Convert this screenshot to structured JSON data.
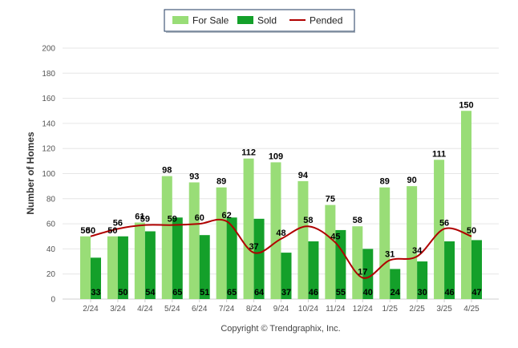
{
  "chart_data": {
    "type": "bar",
    "categories": [
      "2/24",
      "3/24",
      "4/24",
      "5/24",
      "6/24",
      "7/24",
      "8/24",
      "9/24",
      "10/24",
      "11/24",
      "12/24",
      "1/25",
      "2/25",
      "3/25",
      "4/25"
    ],
    "series": [
      {
        "name": "For Sale",
        "kind": "bar",
        "color": "#99dd77",
        "values": [
          50,
          50,
          61,
          98,
          93,
          89,
          112,
          109,
          94,
          75,
          58,
          89,
          90,
          111,
          150
        ]
      },
      {
        "name": "Sold",
        "kind": "bar",
        "color": "#14a02a",
        "values": [
          33,
          50,
          54,
          65,
          51,
          65,
          64,
          37,
          46,
          55,
          40,
          24,
          30,
          46,
          47
        ]
      },
      {
        "name": "Pended",
        "kind": "line",
        "color": "#b00000",
        "values": [
          50,
          56,
          59,
          59,
          60,
          62,
          37,
          48,
          58,
          45,
          17,
          31,
          34,
          56,
          50
        ]
      }
    ],
    "ylabel": "Number of Homes",
    "xlabel": "",
    "ylim": [
      0,
      200
    ],
    "yticks": [
      0,
      20,
      40,
      60,
      80,
      100,
      120,
      140,
      160,
      180,
      200
    ],
    "grid": true,
    "legend_position": "top-center"
  },
  "footer": {
    "copyright": "Copyright © Trendgraphix, Inc."
  }
}
